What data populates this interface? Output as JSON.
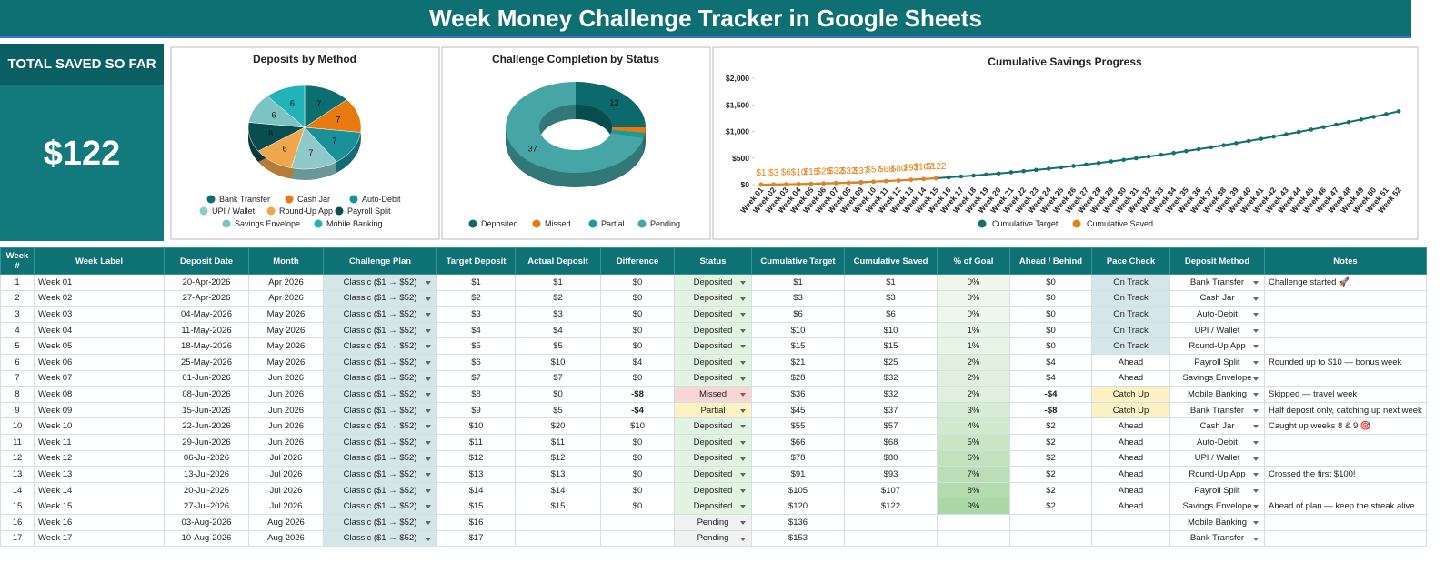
{
  "header": {
    "title": "Week Money Challenge Tracker in Google Sheets"
  },
  "kpi": {
    "label": "TOTAL SAVED SO FAR",
    "value": "$122"
  },
  "chart_data": [
    {
      "type": "pie",
      "title": "Deposits by Method",
      "categories": [
        "Bank Transfer",
        "Cash Jar",
        "Auto-Debit",
        "UPI / Wallet",
        "Round-Up App",
        "Payroll Split",
        "Savings Envelope",
        "Mobile Banking"
      ],
      "values": [
        7,
        7,
        7,
        7,
        6,
        6,
        6,
        6
      ],
      "colors": [
        "#0d6e70",
        "#e8790f",
        "#1a9099",
        "#8fc9c9",
        "#f0a64a",
        "#0a4d50",
        "#7cc4c4",
        "#22b3b8"
      ]
    },
    {
      "type": "donut",
      "title": "Challenge Completion by Status",
      "categories": [
        "Deposited",
        "Missed",
        "Partial",
        "Pending"
      ],
      "values": [
        13,
        1,
        1,
        37
      ],
      "colors": [
        "#0d6a6c",
        "#e8790f",
        "#1a9aa0",
        "#46a6a6"
      ]
    },
    {
      "type": "line",
      "title": "Cumulative Savings Progress",
      "categories": [
        "Week 01",
        "Week 02",
        "Week 03",
        "Week 04",
        "Week 05",
        "Week 06",
        "Week 07",
        "Week 08",
        "Week 09",
        "Week 10",
        "Week 11",
        "Week 12",
        "Week 13",
        "Week 14",
        "Week 15",
        "Week 16",
        "Week 17",
        "Week 18",
        "Week 19",
        "Week 20",
        "Week 21",
        "Week 22",
        "Week 23",
        "Week 24",
        "Week 25",
        "Week 26",
        "Week 27",
        "Week 28",
        "Week 29",
        "Week 30",
        "Week 31",
        "Week 32",
        "Week 33",
        "Week 34",
        "Week 35",
        "Week 36",
        "Week 37",
        "Week 38",
        "Week 39",
        "Week 40",
        "Week 41",
        "Week 42",
        "Week 43",
        "Week 44",
        "Week 45",
        "Week 46",
        "Week 47",
        "Week 48",
        "Week 49",
        "Week 50",
        "Week 51",
        "Week 52"
      ],
      "ylim": [
        0,
        2000
      ],
      "yticks": [
        {
          "value": 0,
          "label": "$0"
        },
        {
          "value": 500,
          "label": "$500"
        },
        {
          "value": 1000,
          "label": "$1,000"
        },
        {
          "value": 1500,
          "label": "$1,500"
        },
        {
          "value": 2000,
          "label": "$2,000"
        }
      ],
      "series": [
        {
          "name": "Cumulative Target",
          "color": "#11706f",
          "values": [
            1,
            3,
            6,
            10,
            15,
            21,
            28,
            36,
            45,
            55,
            66,
            78,
            91,
            105,
            120,
            136,
            153,
            171,
            190,
            210,
            231,
            253,
            276,
            300,
            325,
            351,
            378,
            406,
            435,
            465,
            496,
            528,
            561,
            595,
            630,
            666,
            703,
            741,
            780,
            820,
            861,
            903,
            946,
            990,
            1035,
            1081,
            1128,
            1176,
            1225,
            1275,
            1326,
            1378
          ]
        },
        {
          "name": "Cumulative Saved",
          "color": "#e8811a",
          "values": [
            1,
            3,
            6,
            10,
            15,
            25,
            32,
            32,
            37,
            57,
            68,
            80,
            93,
            107,
            122,
            null,
            null,
            null,
            null,
            null,
            null,
            null,
            null,
            null,
            null,
            null,
            null,
            null,
            null,
            null,
            null,
            null,
            null,
            null,
            null,
            null,
            null,
            null,
            null,
            null,
            null,
            null,
            null,
            null,
            null,
            null,
            null,
            null,
            null,
            null,
            null,
            null
          ],
          "value_labels": [
            "$1",
            "$3",
            "$6",
            "$10",
            "$15",
            "$25",
            "$32",
            "$32",
            "$37",
            "$57",
            "$68",
            "$80",
            "$93",
            "$107",
            "$122",
            null,
            null,
            null,
            null,
            null,
            null,
            null,
            null,
            null,
            null,
            null,
            null,
            null,
            null,
            null,
            null,
            null,
            null,
            null,
            null,
            null,
            null,
            null,
            null,
            null,
            null,
            null,
            null,
            null,
            null,
            null,
            null,
            null,
            null,
            null,
            null,
            null
          ]
        }
      ]
    }
  ],
  "table": {
    "columns": [
      "Week #",
      "Week Label",
      "Deposit Date",
      "Month",
      "Challenge Plan",
      "Target Deposit",
      "Actual Deposit",
      "Difference",
      "Status",
      "Cumulative Target",
      "Cumulative Saved",
      "% of Goal",
      "Ahead / Behind",
      "Pace Check",
      "Deposit Method",
      "Notes"
    ],
    "rows": [
      [
        "1",
        "Week 01",
        "20-Apr-2026",
        "Apr 2026",
        "Classic ($1 → $52)",
        "$1",
        "$1",
        "$0",
        "Deposited",
        "$1",
        "$1",
        "0%",
        "$0",
        "On Track",
        "Bank Transfer",
        "Challenge started 🚀"
      ],
      [
        "2",
        "Week 02",
        "27-Apr-2026",
        "Apr 2026",
        "Classic ($1 → $52)",
        "$2",
        "$2",
        "$0",
        "Deposited",
        "$3",
        "$3",
        "0%",
        "$0",
        "On Track",
        "Cash Jar",
        null
      ],
      [
        "3",
        "Week 03",
        "04-May-2026",
        "May 2026",
        "Classic ($1 → $52)",
        "$3",
        "$3",
        "$0",
        "Deposited",
        "$6",
        "$6",
        "0%",
        "$0",
        "On Track",
        "Auto-Debit",
        null
      ],
      [
        "4",
        "Week 04",
        "11-May-2026",
        "May 2026",
        "Classic ($1 → $52)",
        "$4",
        "$4",
        "$0",
        "Deposited",
        "$10",
        "$10",
        "1%",
        "$0",
        "On Track",
        "UPI / Wallet",
        null
      ],
      [
        "5",
        "Week 05",
        "18-May-2026",
        "May 2026",
        "Classic ($1 → $52)",
        "$5",
        "$5",
        "$0",
        "Deposited",
        "$15",
        "$15",
        "1%",
        "$0",
        "On Track",
        "Round-Up App",
        null
      ],
      [
        "6",
        "Week 06",
        "25-May-2026",
        "May 2026",
        "Classic ($1 → $52)",
        "$6",
        "$10",
        "$4",
        "Deposited",
        "$21",
        "$25",
        "2%",
        "$4",
        "Ahead",
        "Payroll Split",
        "Rounded up to $10 — bonus week"
      ],
      [
        "7",
        "Week 07",
        "01-Jun-2026",
        "Jun 2026",
        "Classic ($1 → $52)",
        "$7",
        "$7",
        "$0",
        "Deposited",
        "$28",
        "$32",
        "2%",
        "$4",
        "Ahead",
        "Savings Envelope",
        null
      ],
      [
        "8",
        "Week 08",
        "08-Jun-2026",
        "Jun 2026",
        "Classic ($1 → $52)",
        "$8",
        "$0",
        "-$8",
        "Missed",
        "$36",
        "$32",
        "2%",
        "-$4",
        "Catch Up",
        "Mobile Banking",
        "Skipped — travel week"
      ],
      [
        "9",
        "Week 09",
        "15-Jun-2026",
        "Jun 2026",
        "Classic ($1 → $52)",
        "$9",
        "$5",
        "-$4",
        "Partial",
        "$45",
        "$37",
        "3%",
        "-$8",
        "Catch Up",
        "Bank Transfer",
        "Half deposit only, catching up next week"
      ],
      [
        "10",
        "Week 10",
        "22-Jun-2026",
        "Jun 2026",
        "Classic ($1 → $52)",
        "$10",
        "$20",
        "$10",
        "Deposited",
        "$55",
        "$57",
        "4%",
        "$2",
        "Ahead",
        "Cash Jar",
        "Caught up weeks 8 & 9 🎯"
      ],
      [
        "11",
        "Week 11",
        "29-Jun-2026",
        "Jun 2026",
        "Classic ($1 → $52)",
        "$11",
        "$11",
        "$0",
        "Deposited",
        "$66",
        "$68",
        "5%",
        "$2",
        "Ahead",
        "Auto-Debit",
        null
      ],
      [
        "12",
        "Week 12",
        "06-Jul-2026",
        "Jul 2026",
        "Classic ($1 → $52)",
        "$12",
        "$12",
        "$0",
        "Deposited",
        "$78",
        "$80",
        "6%",
        "$2",
        "Ahead",
        "UPI / Wallet",
        null
      ],
      [
        "13",
        "Week 13",
        "13-Jul-2026",
        "Jul 2026",
        "Classic ($1 → $52)",
        "$13",
        "$13",
        "$0",
        "Deposited",
        "$91",
        "$93",
        "7%",
        "$2",
        "Ahead",
        "Round-Up App",
        "Crossed the first $100!"
      ],
      [
        "14",
        "Week 14",
        "20-Jul-2026",
        "Jul 2026",
        "Classic ($1 → $52)",
        "$14",
        "$14",
        "$0",
        "Deposited",
        "$105",
        "$107",
        "8%",
        "$2",
        "Ahead",
        "Payroll Split",
        null
      ],
      [
        "15",
        "Week 15",
        "27-Jul-2026",
        "Jul 2026",
        "Classic ($1 → $52)",
        "$15",
        "$15",
        "$0",
        "Deposited",
        "$120",
        "$122",
        "9%",
        "$2",
        "Ahead",
        "Savings Envelope",
        "Ahead of plan — keep the streak alive"
      ],
      [
        "16",
        "Week 16",
        "03-Aug-2026",
        "Aug 2026",
        "Classic ($1 → $52)",
        "$16",
        null,
        null,
        "Pending",
        "$136",
        null,
        null,
        null,
        null,
        "Mobile Banking",
        null
      ],
      [
        "17",
        "Week 17",
        "10-Aug-2026",
        "Aug 2026",
        "Classic ($1 → $52)",
        "$17",
        null,
        null,
        "Pending",
        "$153",
        null,
        null,
        null,
        null,
        "Bank Transfer",
        null
      ]
    ]
  }
}
